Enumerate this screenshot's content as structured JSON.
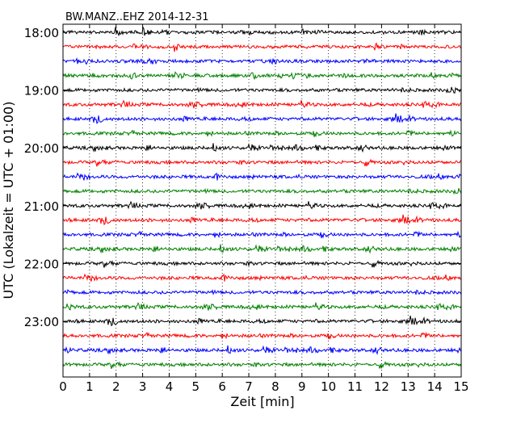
{
  "chart_data": {
    "type": "line",
    "title": "BW.MANZ..EHZ 2014-12-31",
    "xlabel": "Zeit  [min]",
    "ylabel": "UTC (Lokalzeit = UTC + 01:00)",
    "xlim": [
      0,
      15
    ],
    "x_ticks": [
      "0",
      "1",
      "2",
      "3",
      "4",
      "5",
      "6",
      "7",
      "8",
      "9",
      "10",
      "11",
      "12",
      "13",
      "14",
      "15"
    ],
    "y_ticks": [
      "18:00",
      "19:00",
      "20:00",
      "21:00",
      "22:00",
      "23:00"
    ],
    "grid": "vertical dotted",
    "trace_colors": [
      "#000000",
      "#ff0000",
      "#0000ff",
      "#008000"
    ],
    "traces_per_hour": 4,
    "trace_count": 24
  }
}
